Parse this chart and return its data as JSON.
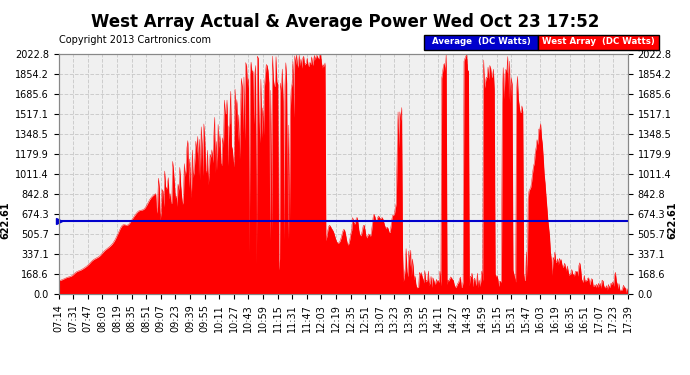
{
  "title": "West Array Actual & Average Power Wed Oct 23 17:52",
  "copyright": "Copyright 2013 Cartronics.com",
  "avg_value": 622.61,
  "y_max": 2022.8,
  "y_ticks": [
    0.0,
    168.6,
    337.1,
    505.7,
    674.3,
    842.8,
    1011.4,
    1179.9,
    1348.5,
    1517.1,
    1685.6,
    1854.2,
    2022.8
  ],
  "x_labels": [
    "07:14",
    "07:31",
    "07:47",
    "08:03",
    "08:19",
    "08:35",
    "08:51",
    "09:07",
    "09:23",
    "09:39",
    "09:55",
    "10:11",
    "10:27",
    "10:43",
    "10:59",
    "11:15",
    "11:31",
    "11:47",
    "12:03",
    "12:19",
    "12:35",
    "12:51",
    "13:07",
    "13:23",
    "13:39",
    "13:55",
    "14:11",
    "14:27",
    "14:43",
    "14:59",
    "15:15",
    "15:31",
    "15:47",
    "16:03",
    "16:19",
    "16:35",
    "16:51",
    "17:07",
    "17:23",
    "17:39"
  ],
  "bg_color": "#ffffff",
  "plot_bg_color": "#f0f0f0",
  "grid_color": "#cccccc",
  "red_color": "#ff0000",
  "avg_line_color": "#0000cc",
  "legend_avg_bg": "#0000cc",
  "legend_west_bg": "#ff0000",
  "title_fontsize": 12,
  "tick_fontsize": 7,
  "copyright_fontsize": 7
}
